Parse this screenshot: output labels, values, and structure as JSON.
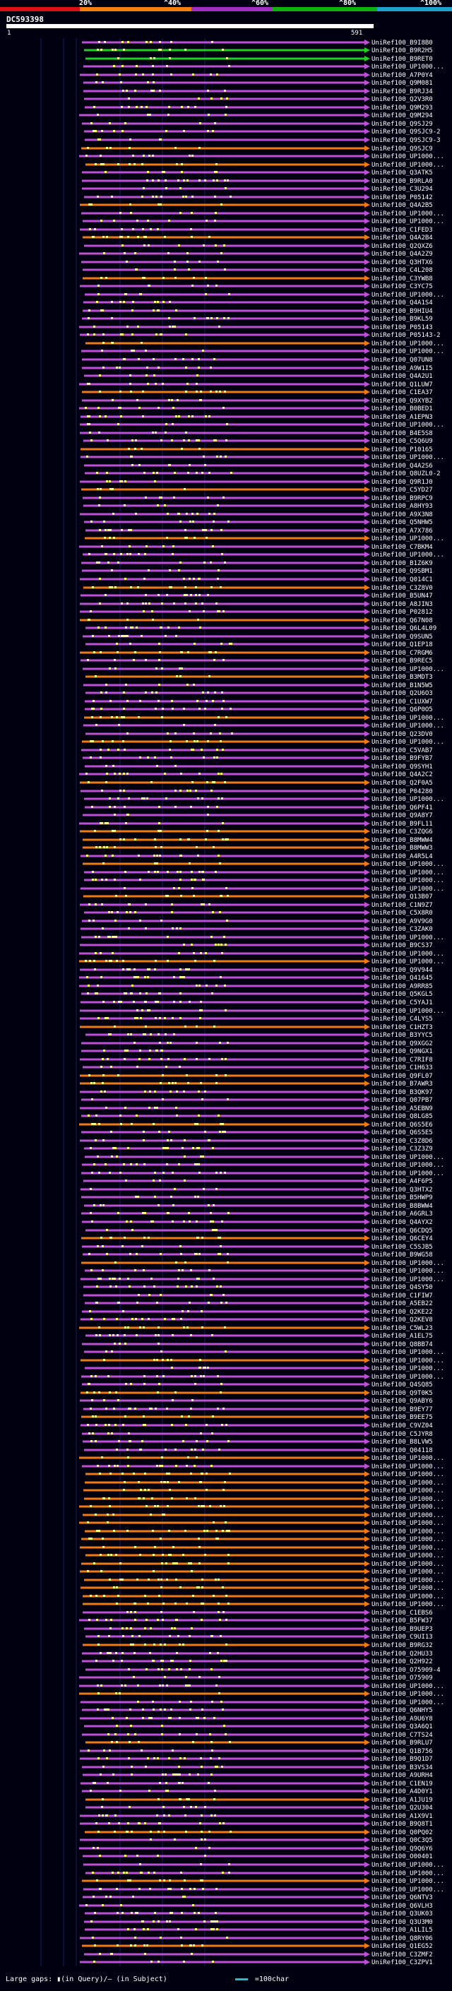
{
  "legend": {
    "segments": [
      {
        "color": "#e01010"
      },
      {
        "color": "#f08010"
      },
      {
        "color": "#a030c0"
      },
      {
        "color": "#10b010"
      },
      {
        "color": "#20a0d0"
      }
    ],
    "labels": [
      "20%",
      "^40%",
      "^60%",
      "^80%",
      "^100%"
    ]
  },
  "query": {
    "name": "DC593398",
    "start": "1",
    "end": "591"
  },
  "colors": {
    "orange": "#f07a10",
    "purple": "#c04fd8",
    "green": "#20d020",
    "gap": "#7080ff",
    "mark": "#ffff80"
  },
  "hits": [
    {
      "label": "UniRef100_B9I8B0",
      "color": "purple"
    },
    {
      "label": "UniRef100_B9R2H5",
      "color": "green"
    },
    {
      "label": "UniRef100_B9RET0",
      "color": "green"
    },
    {
      "label": "UniRef100_UP1000...",
      "color": "purple"
    },
    {
      "label": "UniRef100_A7P0Y4",
      "color": "purple"
    },
    {
      "label": "UniRef100_Q9M081",
      "color": "purple"
    },
    {
      "label": "UniRef100_B9RJ34",
      "color": "purple"
    },
    {
      "label": "UniRef100_Q2V3R0",
      "color": "purple"
    },
    {
      "label": "UniRef100_Q9M293",
      "color": "purple"
    },
    {
      "label": "UniRef100_Q9M294",
      "color": "purple"
    },
    {
      "label": "UniRef100_Q9SJ29",
      "color": "purple"
    },
    {
      "label": "UniRef100_Q9SJC9-2",
      "color": "purple"
    },
    {
      "label": "UniRef100_Q9SJC9-3",
      "color": "purple"
    },
    {
      "label": "UniRef100_Q9SJC9",
      "color": "orange"
    },
    {
      "label": "UniRef100_UP1000...",
      "color": "purple"
    },
    {
      "label": "UniRef100_UP1000...",
      "color": "orange"
    },
    {
      "label": "UniRef100_Q3ATK5",
      "color": "purple"
    },
    {
      "label": "UniRef100_B9RLA0",
      "color": "purple"
    },
    {
      "label": "UniRef100_C3U294",
      "color": "purple"
    },
    {
      "label": "UniRef100_P05142",
      "color": "purple"
    },
    {
      "label": "UniRef100_Q4A2B5",
      "color": "orange"
    },
    {
      "label": "UniRef100_UP1000...",
      "color": "purple"
    },
    {
      "label": "UniRef100_UP1000...",
      "color": "purple"
    },
    {
      "label": "UniRef100_C1FED3",
      "color": "purple"
    },
    {
      "label": "UniRef100_Q4A2B4",
      "color": "orange"
    },
    {
      "label": "UniRef100_Q2QXZ6",
      "color": "purple"
    },
    {
      "label": "UniRef100_Q4A2Z9",
      "color": "purple"
    },
    {
      "label": "UniRef100_Q3HTX6",
      "color": "purple"
    },
    {
      "label": "UniRef100_C4L208",
      "color": "purple"
    },
    {
      "label": "UniRef100_C3YWB8",
      "color": "orange"
    },
    {
      "label": "UniRef100_C3YC75",
      "color": "purple"
    },
    {
      "label": "UniRef100_UP1000...",
      "color": "purple"
    },
    {
      "label": "UniRef100_Q4A1S4",
      "color": "purple"
    },
    {
      "label": "UniRef100_B9HIU4",
      "color": "purple"
    },
    {
      "label": "UniRef100_B9KL59",
      "color": "purple"
    },
    {
      "label": "UniRef100_P05143",
      "color": "purple"
    },
    {
      "label": "UniRef100_P05143-2",
      "color": "purple"
    },
    {
      "label": "UniRef100_UP1000...",
      "color": "orange"
    },
    {
      "label": "UniRef100_UP1000...",
      "color": "purple"
    },
    {
      "label": "UniRef100_Q07UN8",
      "color": "purple"
    },
    {
      "label": "UniRef100_A9W1I5",
      "color": "purple"
    },
    {
      "label": "UniRef100_Q4A2U1",
      "color": "purple"
    },
    {
      "label": "UniRef100_Q1LUW7",
      "color": "purple"
    },
    {
      "label": "UniRef100_C1EA37",
      "color": "orange"
    },
    {
      "label": "UniRef100_Q9XYB2",
      "color": "purple"
    },
    {
      "label": "UniRef100_B0BED1",
      "color": "purple"
    },
    {
      "label": "UniRef100_A1EPN3",
      "color": "purple"
    },
    {
      "label": "UniRef100_UP1000...",
      "color": "purple"
    },
    {
      "label": "UniRef100_B4E5S8",
      "color": "purple"
    },
    {
      "label": "UniRef100_C5Q6U9",
      "color": "purple"
    },
    {
      "label": "UniRef100_P10165",
      "color": "orange"
    },
    {
      "label": "UniRef100_UP1000...",
      "color": "purple"
    },
    {
      "label": "UniRef100_Q4A2S6",
      "color": "purple"
    },
    {
      "label": "UniRef100_Q8UZL0-2",
      "color": "purple"
    },
    {
      "label": "UniRef100_Q9R1J0",
      "color": "purple"
    },
    {
      "label": "UniRef100_C5YD27",
      "color": "orange"
    },
    {
      "label": "UniRef100_B9RPC9",
      "color": "purple"
    },
    {
      "label": "UniRef100_A8HY93",
      "color": "purple"
    },
    {
      "label": "UniRef100_A9X3N8",
      "color": "purple"
    },
    {
      "label": "UniRef100_Q5NHW5",
      "color": "purple"
    },
    {
      "label": "UniRef100_A7X786",
      "color": "purple"
    },
    {
      "label": "UniRef100_UP1000...",
      "color": "orange"
    },
    {
      "label": "UniRef100_C7BKM4",
      "color": "purple"
    },
    {
      "label": "UniRef100_UP1000...",
      "color": "purple"
    },
    {
      "label": "UniRef100_B1Z6K9",
      "color": "purple"
    },
    {
      "label": "UniRef100_Q9SBM1",
      "color": "purple"
    },
    {
      "label": "UniRef100_Q014C1",
      "color": "purple"
    },
    {
      "label": "UniRef100_C3Z8V0",
      "color": "orange"
    },
    {
      "label": "UniRef100_B5UN47",
      "color": "purple"
    },
    {
      "label": "UniRef100_A8JIN3",
      "color": "purple"
    },
    {
      "label": "UniRef100_P02812",
      "color": "purple"
    },
    {
      "label": "UniRef100_Q67N08",
      "color": "orange"
    },
    {
      "label": "UniRef100_Q6L4L09",
      "color": "purple"
    },
    {
      "label": "UniRef100_Q9SUN5",
      "color": "purple"
    },
    {
      "label": "UniRef100_Q1EP18",
      "color": "purple"
    },
    {
      "label": "UniRef100_C7RGM6",
      "color": "orange"
    },
    {
      "label": "UniRef100_B9REC5",
      "color": "purple"
    },
    {
      "label": "UniRef100_UP1000...",
      "color": "purple"
    },
    {
      "label": "UniRef100_B3MDT3",
      "color": "orange"
    },
    {
      "label": "UniRef100_B1N5W5",
      "color": "purple"
    },
    {
      "label": "UniRef100_Q2U6O3",
      "color": "purple"
    },
    {
      "label": "UniRef100_C1UXW7",
      "color": "purple"
    },
    {
      "label": "UniRef100_Q6P0O5",
      "color": "purple"
    },
    {
      "label": "UniRef100_UP1000...",
      "color": "orange"
    },
    {
      "label": "UniRef100_UP1000...",
      "color": "purple"
    },
    {
      "label": "UniRef100_Q23DV0",
      "color": "purple"
    },
    {
      "label": "UniRef100_UP1000...",
      "color": "orange"
    },
    {
      "label": "UniRef100_C5VAB7",
      "color": "purple"
    },
    {
      "label": "UniRef100_B9FYB7",
      "color": "purple"
    },
    {
      "label": "UniRef100_Q9SYH1",
      "color": "purple"
    },
    {
      "label": "UniRef100_Q4A2C2",
      "color": "purple"
    },
    {
      "label": "UniRef100_Q2F0A5",
      "color": "orange"
    },
    {
      "label": "UniRef100_P04280",
      "color": "purple"
    },
    {
      "label": "UniRef100_UP1000...",
      "color": "purple"
    },
    {
      "label": "UniRef100_Q6PF41",
      "color": "purple"
    },
    {
      "label": "UniRef100_Q9A8Y7",
      "color": "purple"
    },
    {
      "label": "UniRef100_B9FL11",
      "color": "purple"
    },
    {
      "label": "UniRef100_C3ZQG6",
      "color": "orange"
    },
    {
      "label": "UniRef100_B8MWW4",
      "color": "orange"
    },
    {
      "label": "UniRef100_B8MWW3",
      "color": "orange"
    },
    {
      "label": "UniRef100_A4R5L4",
      "color": "purple"
    },
    {
      "label": "UniRef100_UP1000...",
      "color": "orange"
    },
    {
      "label": "UniRef100_UP1000...",
      "color": "purple"
    },
    {
      "label": "UniRef100_UP1000...",
      "color": "purple"
    },
    {
      "label": "UniRef100_UP1000...",
      "color": "purple"
    },
    {
      "label": "UniRef100_Q13B07",
      "color": "orange"
    },
    {
      "label": "UniRef100_C1N9Z7",
      "color": "purple"
    },
    {
      "label": "UniRef100_C5X8R0",
      "color": "purple"
    },
    {
      "label": "UniRef100_A9V9G0",
      "color": "purple"
    },
    {
      "label": "UniRef100_C3ZAK0",
      "color": "purple"
    },
    {
      "label": "UniRef100_UP1000...",
      "color": "purple"
    },
    {
      "label": "UniRef100_B9CS37",
      "color": "purple"
    },
    {
      "label": "UniRef100_UP1000...",
      "color": "purple"
    },
    {
      "label": "UniRef100_UP1000...",
      "color": "orange"
    },
    {
      "label": "UniRef100_Q9V944",
      "color": "purple"
    },
    {
      "label": "UniRef100_Q41645",
      "color": "purple"
    },
    {
      "label": "UniRef100_A9RR85",
      "color": "purple"
    },
    {
      "label": "UniRef100_Q5KGL5",
      "color": "purple"
    },
    {
      "label": "UniRef100_C5YAJ1",
      "color": "purple"
    },
    {
      "label": "UniRef100_UP1000...",
      "color": "purple"
    },
    {
      "label": "UniRef100_C4LYS5",
      "color": "purple"
    },
    {
      "label": "UniRef100_C1HZT3",
      "color": "orange"
    },
    {
      "label": "UniRef100_B3YYC5",
      "color": "purple"
    },
    {
      "label": "UniRef100_Q9XGG2",
      "color": "purple"
    },
    {
      "label": "UniRef100_Q9NGX1",
      "color": "purple"
    },
    {
      "label": "UniRef100_C7RIF8",
      "color": "purple"
    },
    {
      "label": "UniRef100_C1H633",
      "color": "purple"
    },
    {
      "label": "UniRef100_Q9FL07",
      "color": "orange"
    },
    {
      "label": "UniRef100_B7AWR3",
      "color": "orange"
    },
    {
      "label": "UniRef100_B3QK97",
      "color": "purple"
    },
    {
      "label": "UniRef100_Q07PB7",
      "color": "purple"
    },
    {
      "label": "UniRef100_A5EBN9",
      "color": "purple"
    },
    {
      "label": "UniRef100_Q8LG85",
      "color": "purple"
    },
    {
      "label": "UniRef100_Q6S5E6",
      "color": "orange"
    },
    {
      "label": "UniRef100_Q6S5E5",
      "color": "purple"
    },
    {
      "label": "UniRef100_C3Z8D6",
      "color": "purple"
    },
    {
      "label": "UniRef100_C3Z3Z9",
      "color": "purple"
    },
    {
      "label": "UniRef100_UP1000...",
      "color": "purple"
    },
    {
      "label": "UniRef100_UP1000...",
      "color": "purple"
    },
    {
      "label": "UniRef100_UP1000...",
      "color": "purple"
    },
    {
      "label": "UniRef100_A4F6P5",
      "color": "purple"
    },
    {
      "label": "UniRef100_Q3HTX2",
      "color": "purple"
    },
    {
      "label": "UniRef100_B5HWP9",
      "color": "purple"
    },
    {
      "label": "UniRef100_B8BWW4",
      "color": "purple"
    },
    {
      "label": "UniRef100_A6GRL3",
      "color": "purple"
    },
    {
      "label": "UniRef100_Q4AYX2",
      "color": "purple"
    },
    {
      "label": "UniRef100_Q6CDQ5",
      "color": "purple"
    },
    {
      "label": "UniRef100_Q6CEY4",
      "color": "orange"
    },
    {
      "label": "UniRef100_C5SJB5",
      "color": "purple"
    },
    {
      "label": "UniRef100_B9WG58",
      "color": "purple"
    },
    {
      "label": "UniRef100_UP1000...",
      "color": "orange"
    },
    {
      "label": "UniRef100_UP1000...",
      "color": "purple"
    },
    {
      "label": "UniRef100_UP1000...",
      "color": "purple"
    },
    {
      "label": "UniRef100_Q4SY50",
      "color": "purple"
    },
    {
      "label": "UniRef100_C1FIW7",
      "color": "purple"
    },
    {
      "label": "UniRef100_A5EB22",
      "color": "purple"
    },
    {
      "label": "UniRef100_Q2KE22",
      "color": "purple"
    },
    {
      "label": "UniRef100_Q2KEV8",
      "color": "purple"
    },
    {
      "label": "UniRef100_C5WL23",
      "color": "orange"
    },
    {
      "label": "UniRef100_A1EL75",
      "color": "purple"
    },
    {
      "label": "UniRef100_Q8BB74",
      "color": "purple"
    },
    {
      "label": "UniRef100_UP1000...",
      "color": "purple"
    },
    {
      "label": "UniRef100_UP1000...",
      "color": "orange"
    },
    {
      "label": "UniRef100_UP1000...",
      "color": "purple"
    },
    {
      "label": "UniRef100_UP1000...",
      "color": "purple"
    },
    {
      "label": "UniRef100_Q4SQ85",
      "color": "purple"
    },
    {
      "label": "UniRef100_Q9T0K5",
      "color": "orange"
    },
    {
      "label": "UniRef100_Q9ABY6",
      "color": "purple"
    },
    {
      "label": "UniRef100_B9EY77",
      "color": "purple"
    },
    {
      "label": "UniRef100_B9EE75",
      "color": "orange"
    },
    {
      "label": "UniRef100_C9VZ04",
      "color": "purple"
    },
    {
      "label": "UniRef100_C5JYR8",
      "color": "purple"
    },
    {
      "label": "UniRef100_B8LVW5",
      "color": "purple"
    },
    {
      "label": "UniRef100_Q04118",
      "color": "purple"
    },
    {
      "label": "UniRef100_UP1000...",
      "color": "orange"
    },
    {
      "label": "UniRef100_UP1000...",
      "color": "purple"
    },
    {
      "label": "UniRef100_UP1000...",
      "color": "orange"
    },
    {
      "label": "UniRef100_UP1000...",
      "color": "orange"
    },
    {
      "label": "UniRef100_UP1000...",
      "color": "orange"
    },
    {
      "label": "UniRef100_UP1000...",
      "color": "orange"
    },
    {
      "label": "UniRef100_UP1000...",
      "color": "orange"
    },
    {
      "label": "UniRef100_UP1000...",
      "color": "orange"
    },
    {
      "label": "UniRef100_UP1000...",
      "color": "orange"
    },
    {
      "label": "UniRef100_UP1000...",
      "color": "orange"
    },
    {
      "label": "UniRef100_UP1000...",
      "color": "orange"
    },
    {
      "label": "UniRef100_UP1000...",
      "color": "orange"
    },
    {
      "label": "UniRef100_UP1000...",
      "color": "orange"
    },
    {
      "label": "UniRef100_UP1000...",
      "color": "orange"
    },
    {
      "label": "UniRef100_UP1000...",
      "color": "orange"
    },
    {
      "label": "UniRef100_UP1000...",
      "color": "orange"
    },
    {
      "label": "UniRef100_UP1000...",
      "color": "orange"
    },
    {
      "label": "UniRef100_UP1000...",
      "color": "orange"
    },
    {
      "label": "UniRef100_UP1000...",
      "color": "orange"
    },
    {
      "label": "UniRef100_C1EBS6",
      "color": "purple"
    },
    {
      "label": "UniRef100_B5FW37",
      "color": "purple"
    },
    {
      "label": "UniRef100_B9UEP3",
      "color": "purple"
    },
    {
      "label": "UniRef100_C9UI13",
      "color": "purple"
    },
    {
      "label": "UniRef100_B9RG32",
      "color": "orange"
    },
    {
      "label": "UniRef100_Q2HU33",
      "color": "purple"
    },
    {
      "label": "UniRef100_Q2H922",
      "color": "purple"
    },
    {
      "label": "UniRef100_O75909-4",
      "color": "purple"
    },
    {
      "label": "UniRef100_O75909",
      "color": "purple"
    },
    {
      "label": "UniRef100_UP1000...",
      "color": "purple"
    },
    {
      "label": "UniRef100_UP1000...",
      "color": "orange"
    },
    {
      "label": "UniRef100_UP1000...",
      "color": "purple"
    },
    {
      "label": "UniRef100_Q6NHY5",
      "color": "purple"
    },
    {
      "label": "UniRef100_A9U6Y8",
      "color": "purple"
    },
    {
      "label": "UniRef100_Q3A6Q1",
      "color": "purple"
    },
    {
      "label": "UniRef100_C7TS24",
      "color": "purple"
    },
    {
      "label": "UniRef100_B9RLU7",
      "color": "orange"
    },
    {
      "label": "UniRef100_Q1B756",
      "color": "purple"
    },
    {
      "label": "UniRef100_B9Q1D7",
      "color": "purple"
    },
    {
      "label": "UniRef100_B3VS34",
      "color": "purple"
    },
    {
      "label": "UniRef100_A9URH4",
      "color": "purple"
    },
    {
      "label": "UniRef100_C1EN19",
      "color": "purple"
    },
    {
      "label": "UniRef100_A4D0Y1",
      "color": "purple"
    },
    {
      "label": "UniRef100_A1JU19",
      "color": "orange"
    },
    {
      "label": "UniRef100_Q2U304",
      "color": "purple"
    },
    {
      "label": "UniRef100_A1X9V1",
      "color": "purple"
    },
    {
      "label": "UniRef100_B9Q8T1",
      "color": "purple"
    },
    {
      "label": "UniRef100_Q0PQ02",
      "color": "orange"
    },
    {
      "label": "UniRef100_Q0C3Q5",
      "color": "purple"
    },
    {
      "label": "UniRef100_Q9Q6Y6",
      "color": "purple"
    },
    {
      "label": "UniRef100_O00401",
      "color": "purple"
    },
    {
      "label": "UniRef100_UP1000...",
      "color": "purple"
    },
    {
      "label": "UniRef100_UP1000...",
      "color": "purple"
    },
    {
      "label": "UniRef100_UP1000...",
      "color": "orange"
    },
    {
      "label": "UniRef100_UP1000...",
      "color": "purple"
    },
    {
      "label": "UniRef100_Q6NTV3",
      "color": "purple"
    },
    {
      "label": "UniRef100_Q6VLH3",
      "color": "purple"
    },
    {
      "label": "UniRef100_Q3UK03",
      "color": "purple"
    },
    {
      "label": "UniRef100_Q3U3M0",
      "color": "purple"
    },
    {
      "label": "UniRef100_A1LIL5",
      "color": "purple"
    },
    {
      "label": "UniRef100_Q8RY06",
      "color": "purple"
    },
    {
      "label": "UniRef100_Q1EG52",
      "color": "orange"
    },
    {
      "label": "UniRef100_C3ZMF2",
      "color": "purple"
    },
    {
      "label": "UniRef100_C3ZPV1",
      "color": "purple"
    }
  ],
  "footer": {
    "text": "Large gaps: ▮(in Query)/– (in Subject)",
    "scale": "=100char"
  }
}
